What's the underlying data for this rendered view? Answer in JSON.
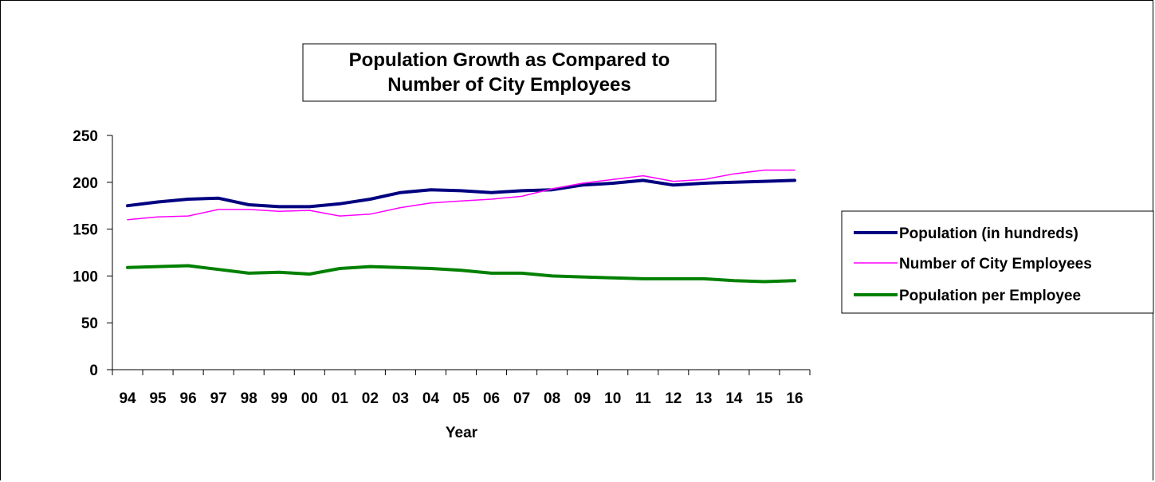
{
  "chart_data": {
    "type": "line",
    "title_lines": [
      "Population Growth as Compared to",
      "Number of City Employees"
    ],
    "xlabel": "Year",
    "ylabel": "",
    "categories": [
      "94",
      "95",
      "96",
      "97",
      "98",
      "99",
      "00",
      "01",
      "02",
      "03",
      "04",
      "05",
      "06",
      "07",
      "08",
      "09",
      "10",
      "11",
      "12",
      "13",
      "14",
      "15",
      "16"
    ],
    "ylim": [
      0,
      250
    ],
    "yticks": [
      0,
      50,
      100,
      150,
      200,
      250
    ],
    "grid": false,
    "legend_position": "right",
    "series": [
      {
        "name": "Population (in hundreds)",
        "color": "#000080",
        "values": [
          175,
          179,
          182,
          183,
          176,
          174,
          174,
          177,
          182,
          189,
          192,
          191,
          189,
          191,
          192,
          197,
          199,
          202,
          197,
          199,
          200,
          201,
          202
        ]
      },
      {
        "name": "Number of City Employees",
        "color": "#ff00ff",
        "values": [
          160,
          163,
          164,
          171,
          171,
          169,
          170,
          164,
          166,
          173,
          178,
          180,
          182,
          185,
          193,
          199,
          203,
          207,
          201,
          203,
          209,
          213,
          213
        ]
      },
      {
        "name": "Population per Employee",
        "color": "#008000",
        "values": [
          109,
          110,
          111,
          107,
          103,
          104,
          102,
          108,
          110,
          109,
          108,
          106,
          103,
          103,
          100,
          99,
          98,
          97,
          97,
          97,
          95,
          94,
          95
        ]
      }
    ]
  }
}
